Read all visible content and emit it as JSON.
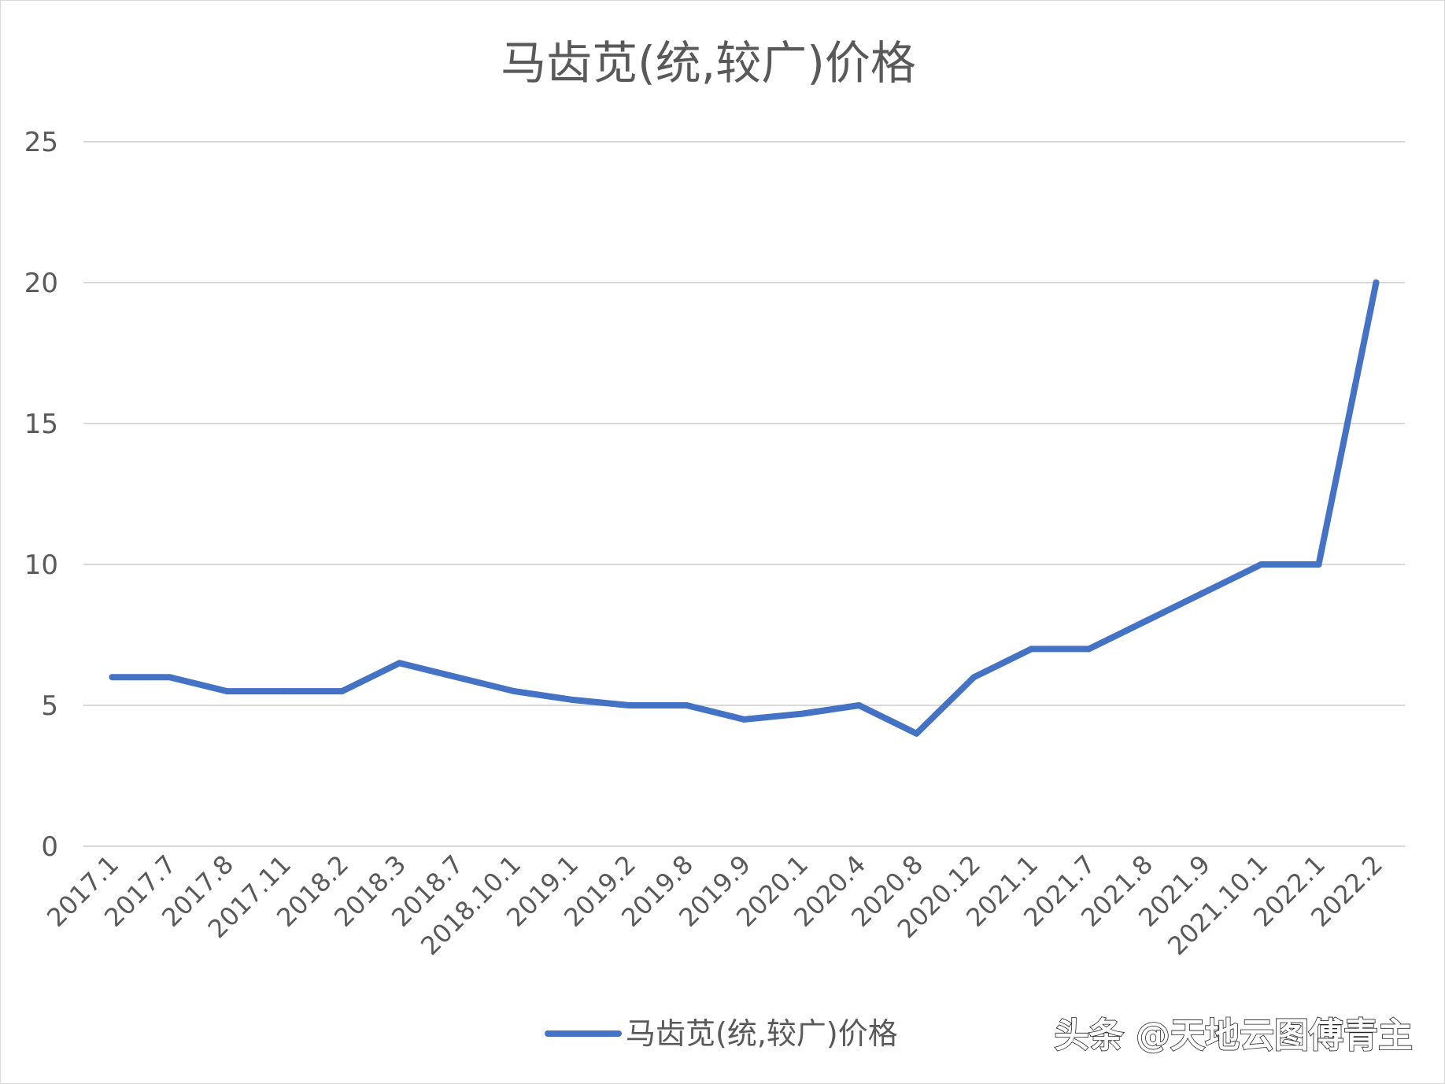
{
  "chart_data": {
    "type": "line",
    "title": "马齿苋(统,较广)价格",
    "categories": [
      "2017.1",
      "2017.7",
      "2017.8",
      "2017.11",
      "2018.2",
      "2018.3",
      "2018.7",
      "2018.10.1",
      "2019.1",
      "2019.2",
      "2019.8",
      "2019.9",
      "2020.1",
      "2020.4",
      "2020.8",
      "2020.12",
      "2021.1",
      "2021.7",
      "2021.8",
      "2021.9",
      "2021.10.1",
      "2022.1",
      "2022.2"
    ],
    "series": [
      {
        "name": "马齿苋(统,较广)价格",
        "color": "#4472c4",
        "values": [
          6,
          6,
          5.5,
          5.5,
          5.5,
          6.5,
          6,
          5.5,
          5.2,
          5,
          5,
          4.5,
          4.7,
          5,
          4,
          6,
          7,
          7,
          8,
          9,
          10,
          10,
          20
        ]
      }
    ],
    "ylim": [
      0,
      25
    ],
    "yticks": [
      "0",
      "5",
      "10",
      "15",
      "20",
      "25"
    ],
    "grid": true,
    "legend_position": "bottom"
  },
  "watermark": "头条 @天地云图傅青主"
}
